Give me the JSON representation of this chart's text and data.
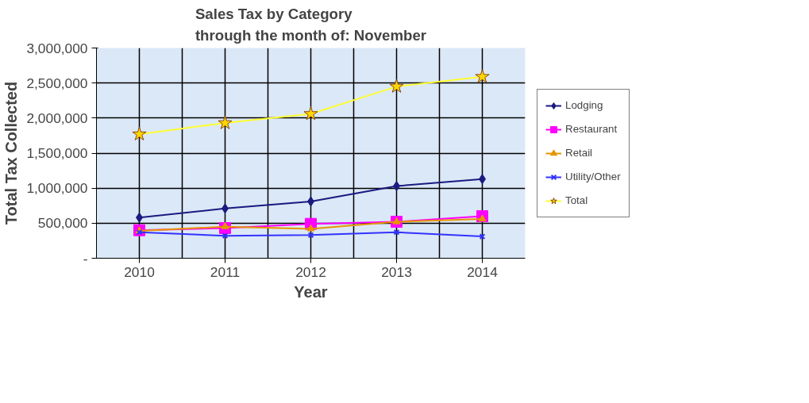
{
  "chart_data": {
    "type": "line",
    "title": "Sales Tax by Category\nthrough the month of: November",
    "xlabel": "Year",
    "ylabel": "Total Tax Collected",
    "categories": [
      "2010",
      "2011",
      "2012",
      "2013",
      "2014"
    ],
    "series": [
      {
        "name": "Lodging",
        "color": "#1a1a80",
        "marker": "diamond",
        "values": [
          580000,
          710000,
          810000,
          1030000,
          1130000
        ]
      },
      {
        "name": "Restaurant",
        "color": "#ff00ff",
        "marker": "square",
        "values": [
          400000,
          430000,
          490000,
          520000,
          600000
        ]
      },
      {
        "name": "Retail",
        "color": "#e69500",
        "marker": "triangle",
        "values": [
          390000,
          450000,
          420000,
          520000,
          560000
        ]
      },
      {
        "name": "Utility/Other",
        "color": "#3333ff",
        "marker": "cross",
        "values": [
          370000,
          320000,
          330000,
          370000,
          310000
        ]
      },
      {
        "name": "Total",
        "color": "#ffff33",
        "marker": "star",
        "values": [
          1770000,
          1930000,
          2060000,
          2450000,
          2590000
        ]
      }
    ],
    "ylim": [
      0,
      3000000
    ],
    "yticks": [
      {
        "value": 0,
        "label": "-"
      },
      {
        "value": 500000,
        "label": "500,000"
      },
      {
        "value": 1000000,
        "label": "1,000,000"
      },
      {
        "value": 1500000,
        "label": "1,500,000"
      },
      {
        "value": 2000000,
        "label": "2,000,000"
      },
      {
        "value": 2500000,
        "label": "2,500,000"
      },
      {
        "value": 3000000,
        "label": "3,000,000"
      }
    ],
    "grid": true,
    "legend": "right"
  }
}
